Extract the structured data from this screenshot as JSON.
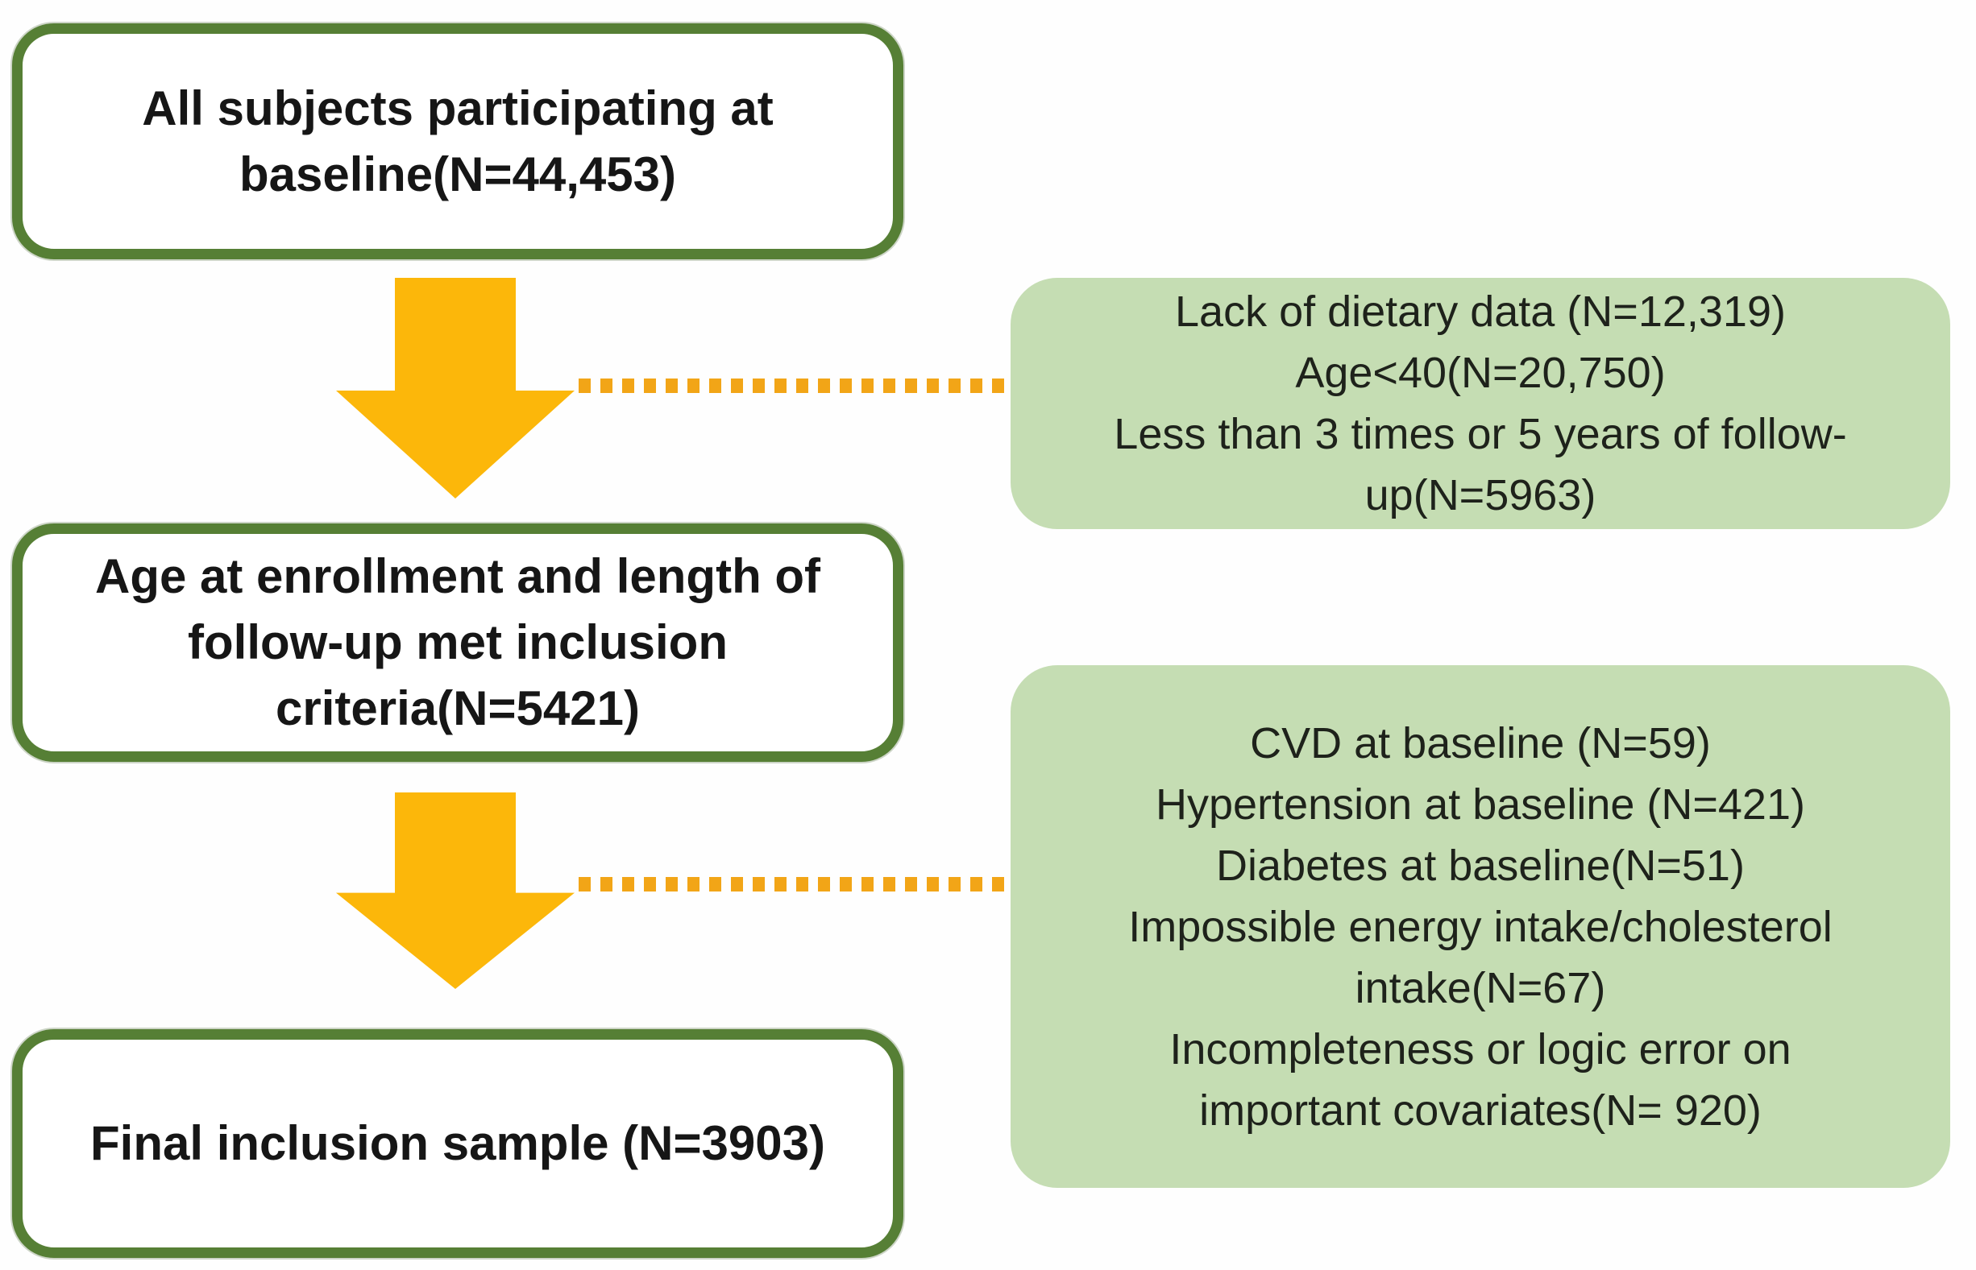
{
  "palette": {
    "border-green": "#567F35",
    "excl-fill": "#C5DDB3",
    "arrow-gold": "#FCB70A",
    "dot-gold": "#F2A517",
    "stage-text": "#161616",
    "excl-text": "#1E221B"
  },
  "flowchart": {
    "stage1": {
      "lines": [
        "All subjects participating at",
        "baseline(N=44,453)"
      ]
    },
    "exclusion1": {
      "lines": [
        "Lack of dietary data (N=12,319)",
        "Age<40(N=20,750)",
        "Less than 3 times or 5 years of follow-",
        "up(N=5963)"
      ]
    },
    "stage2": {
      "lines": [
        "Age at enrollment and length of",
        "follow-up met inclusion",
        "criteria(N=5421)"
      ]
    },
    "exclusion2": {
      "lines": [
        "CVD at baseline (N=59)",
        "Hypertension at baseline (N=421)",
        "Diabetes at baseline(N=51)",
        "Impossible energy intake/cholesterol",
        "intake(N=67)",
        "Incompleteness or logic error on",
        "important covariates(N= 920)"
      ]
    },
    "stage3": {
      "lines": [
        "Final inclusion sample (N=3903)"
      ]
    }
  }
}
